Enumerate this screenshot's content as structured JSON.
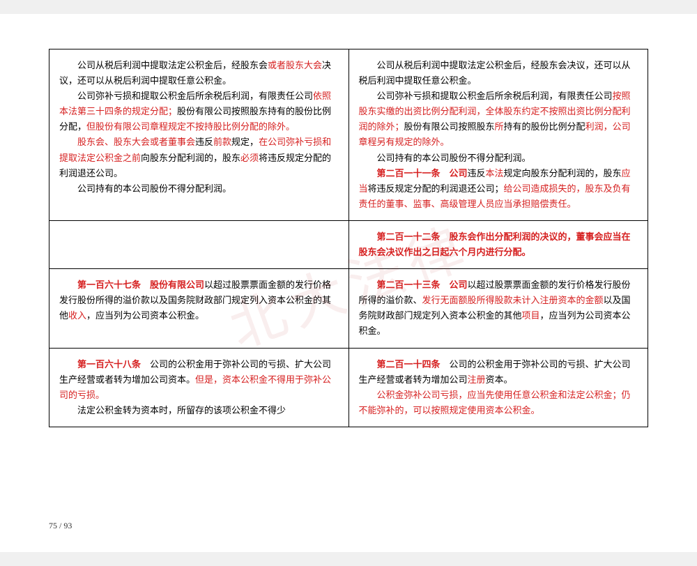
{
  "watermark_text": "北大法律",
  "page_number": "75 / 93",
  "colors": {
    "highlight": "#d62020",
    "text": "#000000",
    "background": "#ffffff",
    "border": "#000000"
  },
  "typography": {
    "body_fontsize": 13,
    "line_height": 1.7,
    "indent_chars": 2
  },
  "rows": [
    {
      "left": [
        {
          "indent": true,
          "segs": [
            {
              "t": "公司从税后利润中提取法定公积金后，经股东会"
            },
            {
              "t": "或者股东大会",
              "red": true
            },
            {
              "t": "决议，还可以从税后利润中提取任意公积金。"
            }
          ]
        },
        {
          "indent": true,
          "segs": [
            {
              "t": "公司弥补亏损和提取公积金后所余税后利润，有限责任公司"
            },
            {
              "t": "依照本法第三十四条的规定分配；",
              "red": true
            },
            {
              "t": "股份有限公司按照股东持有的股份比例分配，"
            },
            {
              "t": "但股份有限公司章程规定不按持股比例分配的除外。",
              "red": true
            }
          ]
        },
        {
          "indent": true,
          "segs": [
            {
              "t": "股东会、股东大会或者董事会",
              "red": true
            },
            {
              "t": "违反"
            },
            {
              "t": "前款",
              "red": true
            },
            {
              "t": "规定，"
            },
            {
              "t": "在公司弥补亏损和提取法定公积金之前",
              "red": true
            },
            {
              "t": "向股东分配利润的，股东"
            },
            {
              "t": "必须",
              "red": true
            },
            {
              "t": "将违反规定分配的利润退还公司。"
            }
          ]
        },
        {
          "indent": true,
          "segs": [
            {
              "t": "公司持有的本公司股份不得分配利润。"
            }
          ]
        }
      ],
      "right": [
        {
          "indent": true,
          "segs": [
            {
              "t": "公司从税后利润中提取法定公积金后，经股东会决议，还可以从税后利润中提取任意公积金。"
            }
          ]
        },
        {
          "indent": true,
          "segs": [
            {
              "t": "公司弥补亏损和提取公积金后所余税后利润，有限责任公司"
            },
            {
              "t": "按照股东实缴的出资比例分配利润，全体股东约定不按照出资比例分配利润的除外；",
              "red": true
            },
            {
              "t": "股份有限公司按照股东"
            },
            {
              "t": "所",
              "red": true
            },
            {
              "t": "持有的股份比例分配"
            },
            {
              "t": "利润，公司章程另有规定的除外。",
              "red": true
            }
          ]
        },
        {
          "indent": true,
          "segs": [
            {
              "t": "公司持有的本公司股份不得分配利润。"
            }
          ]
        },
        {
          "indent": true,
          "segs": [
            {
              "t": "第二百一十一条　公司",
              "red": true,
              "bold": true
            },
            {
              "t": "违反"
            },
            {
              "t": "本法",
              "red": true
            },
            {
              "t": "规定向股东分配利润的，股东"
            },
            {
              "t": "应当",
              "red": true
            },
            {
              "t": "将违反规定分配的利润退还公司；"
            },
            {
              "t": "给公司造成损失的，股东及负有责任的董事、监事、高级管理人员应当承担赔偿责任。",
              "red": true
            }
          ]
        }
      ]
    },
    {
      "left": [],
      "right": [
        {
          "indent": true,
          "segs": [
            {
              "t": "第二百一十二条　股东会作出分配利润的决议的，董事会应当在股东会决议作出之日起六个月内进行分配。",
              "red": true,
              "bold": true
            }
          ]
        }
      ]
    },
    {
      "left": [
        {
          "indent": true,
          "segs": [
            {
              "t": "第一百六十七条　股份有限公司",
              "red": true,
              "bold": true
            },
            {
              "t": "以超过股票票面金额的发行价格发行股份所得的溢价款以及国务院财政部门规定列入资本公积金的其他"
            },
            {
              "t": "收入",
              "red": true
            },
            {
              "t": "，应当列为公司资本公积金。"
            }
          ]
        }
      ],
      "right": [
        {
          "indent": true,
          "segs": [
            {
              "t": "第二百一十三条　公司",
              "red": true,
              "bold": true
            },
            {
              "t": "以超过股票票面金额的发行价格发行股份所得的溢价款、"
            },
            {
              "t": "发行无面额股所得股款未计入注册资本的金额",
              "red": true
            },
            {
              "t": "以及国务院财政部门规定列入资本公积金的其他"
            },
            {
              "t": "项目",
              "red": true
            },
            {
              "t": "，应当列为公司资本公积金。"
            }
          ]
        }
      ]
    },
    {
      "left": [
        {
          "indent": true,
          "segs": [
            {
              "t": "第一百六十八条",
              "red": true,
              "bold": true
            },
            {
              "t": "　公司的公积金用于弥补公司的亏损、扩大公司生产经营或者转为增加公司资本。"
            },
            {
              "t": "但是，资本公积金不得用于弥补公司的亏损。",
              "red": true
            }
          ]
        },
        {
          "indent": true,
          "segs": [
            {
              "t": "法定公积金转为资本时，所留存的该项公积金不得少"
            }
          ]
        }
      ],
      "right": [
        {
          "indent": true,
          "segs": [
            {
              "t": "第二百一十四条",
              "red": true,
              "bold": true
            },
            {
              "t": "　公司的公积金用于弥补公司的亏损、扩大公司生产经营或者转为增加公司"
            },
            {
              "t": "注册",
              "red": true
            },
            {
              "t": "资本。"
            }
          ]
        },
        {
          "indent": true,
          "segs": [
            {
              "t": "公积金弥补公司亏损，应当先使用任意公积金和法定公积金；仍不能弥补的，可以按照规定使用资本公积金。",
              "red": true
            }
          ]
        }
      ]
    }
  ]
}
